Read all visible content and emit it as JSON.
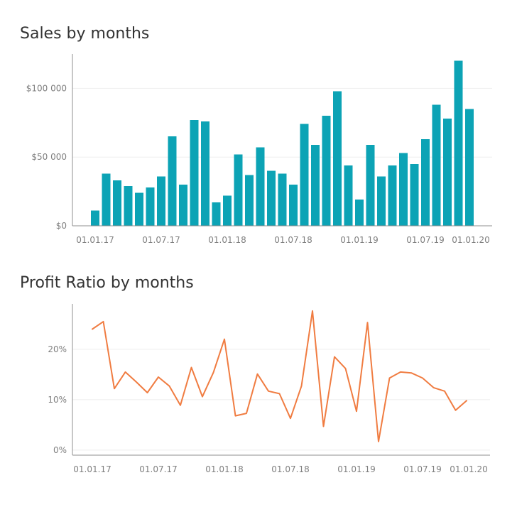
{
  "chart_data": [
    {
      "type": "bar",
      "title": "Sales by months",
      "xlabel": "",
      "ylabel": "",
      "color": "#0ca3b5",
      "ylim": [
        0,
        125000
      ],
      "y_ticks": [
        {
          "value": 0,
          "label": "$0"
        },
        {
          "value": 50000,
          "label": "$50 000"
        },
        {
          "value": 100000,
          "label": "$100 000"
        }
      ],
      "x_ticks": [
        {
          "index": 0,
          "label": "01.01.17"
        },
        {
          "index": 6,
          "label": "01.07.17"
        },
        {
          "index": 12,
          "label": "01.01.18"
        },
        {
          "index": 18,
          "label": "01.07.18"
        },
        {
          "index": 24,
          "label": "01.01.19"
        },
        {
          "index": 30,
          "label": "01.07.19"
        },
        {
          "index": 36,
          "label": "01.01.20"
        }
      ],
      "values": [
        11000,
        38000,
        33000,
        29000,
        24000,
        28000,
        36000,
        65000,
        30000,
        77000,
        76000,
        17000,
        22000,
        52000,
        37000,
        57000,
        40000,
        38000,
        30000,
        74000,
        59000,
        80000,
        98000,
        44000,
        19000,
        59000,
        36000,
        44000,
        53000,
        45000,
        63000,
        88000,
        78000,
        120000,
        85000
      ]
    },
    {
      "type": "line",
      "title": "Profit Ratio by months",
      "xlabel": "",
      "ylabel": "",
      "color": "#f07c41",
      "ylim": [
        -0.01,
        0.29
      ],
      "y_ticks": [
        {
          "value": 0,
          "label": "0%"
        },
        {
          "value": 0.1,
          "label": "10%"
        },
        {
          "value": 0.2,
          "label": "20%"
        }
      ],
      "x_ticks": [
        {
          "index": 0,
          "label": "01.01.17"
        },
        {
          "index": 6,
          "label": "01.07.17"
        },
        {
          "index": 12,
          "label": "01.01.18"
        },
        {
          "index": 18,
          "label": "01.07.18"
        },
        {
          "index": 24,
          "label": "01.01.19"
        },
        {
          "index": 30,
          "label": "01.07.19"
        },
        {
          "index": 36,
          "label": "01.01.20"
        }
      ],
      "values": [
        0.24,
        0.255,
        0.122,
        0.155,
        0.135,
        0.114,
        0.145,
        0.127,
        0.089,
        0.164,
        0.106,
        0.154,
        0.22,
        0.068,
        0.073,
        0.151,
        0.117,
        0.112,
        0.063,
        0.127,
        0.276,
        0.047,
        0.185,
        0.162,
        0.077,
        0.253,
        0.017,
        0.143,
        0.155,
        0.153,
        0.143,
        0.124,
        0.117,
        0.079,
        0.098
      ]
    }
  ]
}
